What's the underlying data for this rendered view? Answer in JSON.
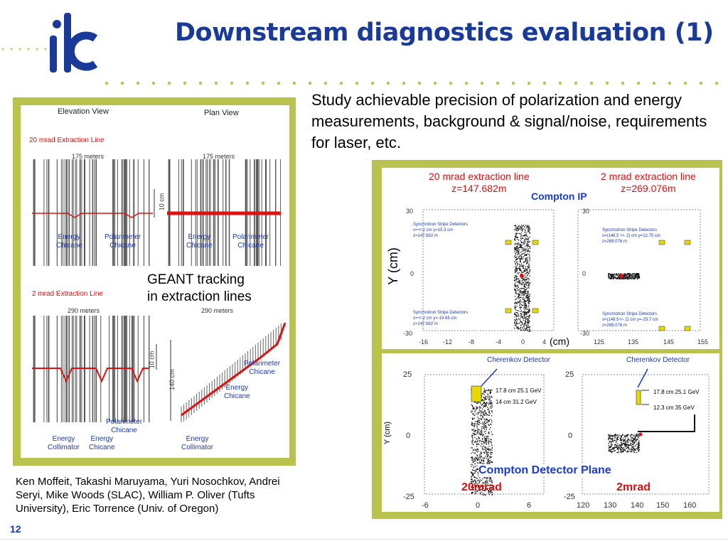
{
  "header": {
    "title": "Downstream diagnostics evaluation (1)",
    "logo_text": "ilc"
  },
  "intro_text": "Study achievable precision of polarization and energy measurements, background & signal/noise, requirements for laser, etc.",
  "left_figure": {
    "elevation_view": "Elevation View",
    "plan_view": "Plan View",
    "line_20mrad": "20 mrad Extraction Line",
    "line_2mrad": "2 mrad Extraction Line",
    "length_175": "175 meters",
    "length_290": "290 meters",
    "scale_10cm": "10 cm",
    "scale_140cm": "140 cm",
    "energy_chicane": "Energy\nChicane",
    "polarimeter_chicane": "Polarimeter\nChicane",
    "energy_collimator": "Energy\nCollimator",
    "geant_caption": "GEANT tracking\nin extraction lines"
  },
  "right_top": {
    "label_20": "20 mrad extraction line",
    "z_20": "z=147.682m",
    "label_2": "2 mrad extraction line",
    "z_2": "z=269.076m",
    "compton_ip": "Compton IP",
    "y_axis": "Y (cm)",
    "x_unit": "(cm)",
    "y_ticks": [
      "30",
      "0",
      "-30"
    ],
    "x_ticks_left": [
      "-16",
      "-12",
      "-8",
      "-4",
      "0",
      "4"
    ],
    "x_ticks_right": [
      "125",
      "135",
      "145",
      "155"
    ],
    "det_top_left": "Synchrotron Stripe Detectors\nx=+/-2 cm y=15.3 cm\nz=147.682 m",
    "det_bot_left": "Synchrotron Stripe Detectors\nx=+/-2 cm y=-19.65 cm\nz=147.682 m",
    "det_top_right": "Synchrotron Stripe Detectors\nx=(148.5 +/- 2) cm y=12.75 cm\nz=269.076 m",
    "det_bot_right": "Synchrotron Stripe Detectors\nx=(148.5+/- 2) cm y=-25.7 cm\nz=269.076 m"
  },
  "right_bottom": {
    "cherenkov_left": "Cherenkov Detector",
    "cherenkov_right": "Cherenkov Detector",
    "y_axis": "Y (cm)",
    "y_ticks": [
      "25",
      "0",
      "-25"
    ],
    "x_ticks_left": [
      "-6",
      "0",
      "6"
    ],
    "x_ticks_right": [
      "120",
      "130",
      "140",
      "150",
      "160"
    ],
    "annot_l1": "17.8 cm 25.1 GeV",
    "annot_l2": "14 cm 31.2 GeV",
    "annot_r1": "17.8 cm 25.1 GeV",
    "annot_r2": "12.3 cm 35 GeV",
    "plane_label": "Compton Detector Plane",
    "mrad20": "20mrad",
    "mrad2": "2mrad"
  },
  "credits": "Ken Moffeit, Takashi Maruyama, Yuri Nosochkov, Andrei Seryi, Mike Woods (SLAC), William P. Oliver (Tufts University), Eric Torrence (Univ. of Oregon)",
  "page_number": "12",
  "colors": {
    "title": "#1a3a9a",
    "panel_border": "#b9c24d",
    "accent_red": "#d81010",
    "label_blue": "#1a3ab0"
  }
}
